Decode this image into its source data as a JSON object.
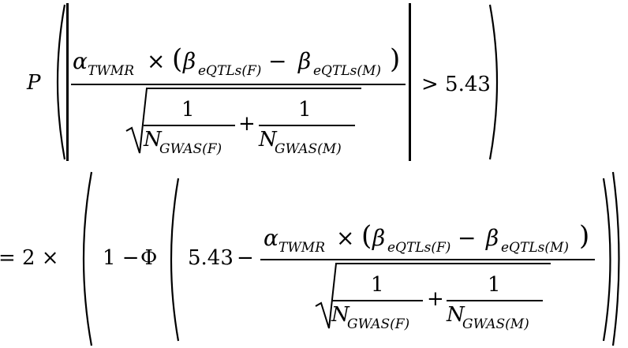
{
  "equation": {
    "line1": {
      "prob_symbol": "P",
      "numerator": {
        "alpha": "α",
        "alpha_sub": "TWMR",
        "times": "×",
        "open_paren": "(",
        "beta": "β",
        "beta_f_sub": "eQTLs(F)",
        "minus": "−",
        "beta_m_sub": "eQTLs(M)",
        "close_paren": ")"
      },
      "denominator": {
        "one": "1",
        "n": "N",
        "n_f_sub": "GWAS(F)",
        "plus": "+",
        "n_m_sub": "GWAS(M)"
      },
      "comparison": "> 5.43"
    },
    "line2": {
      "lead": "=",
      "two_times": "2 ×",
      "one_minus": "1 −",
      "phi": "Φ",
      "threshold": "5.43",
      "minus": "−",
      "numerator": {
        "alpha": "α",
        "alpha_sub": "TWMR",
        "times": "×",
        "open_paren": "(",
        "beta": "β",
        "beta_f_sub": "eQTLs(F)",
        "minus": "−",
        "beta_m_sub": "eQTLs(M)",
        "close_paren": ")"
      },
      "denominator": {
        "one": "1",
        "n": "N",
        "n_f_sub": "GWAS(F)",
        "plus": "+",
        "n_m_sub": "GWAS(M)"
      }
    }
  }
}
